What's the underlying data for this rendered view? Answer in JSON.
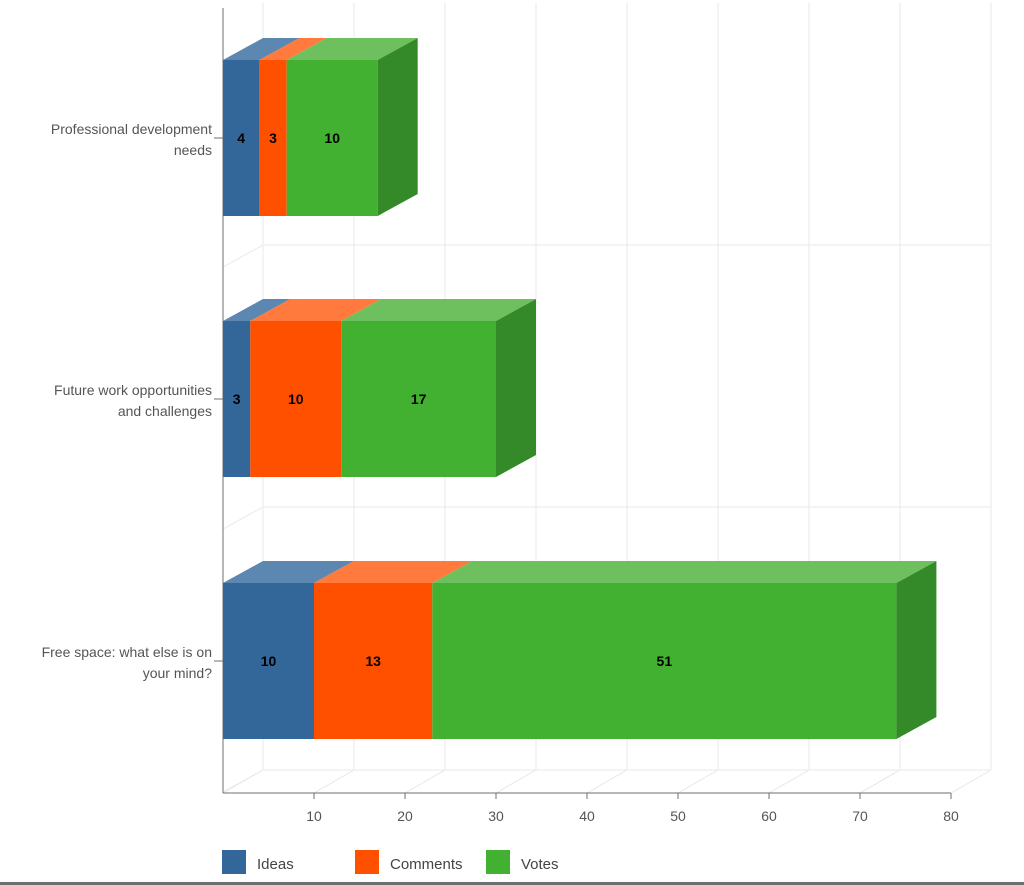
{
  "chart_data": {
    "type": "bar",
    "orientation": "horizontal",
    "stacked": true,
    "three_d": true,
    "title": "",
    "xlabel": "",
    "ylabel": "",
    "xlim": [
      0,
      80
    ],
    "ticks": [
      10,
      20,
      30,
      40,
      50,
      60,
      70,
      80
    ],
    "grid": true,
    "legend_position": "bottom-left",
    "categories": [
      [
        "Professional development",
        "needs"
      ],
      [
        "Future work opportunities",
        "and challenges"
      ],
      [
        "Free space: what else is on",
        "your mind?"
      ]
    ],
    "series": [
      {
        "name": "Ideas",
        "color": "#336699",
        "top_color": "#5c87b1",
        "side_color": "#27517a",
        "values": [
          4,
          3,
          10
        ]
      },
      {
        "name": "Comments",
        "color": "#ff5000",
        "top_color": "#ff7a3c",
        "side_color": "#c43c00",
        "values": [
          3,
          10,
          13
        ]
      },
      {
        "name": "Votes",
        "color": "#42b030",
        "top_color": "#6ec05e",
        "side_color": "#348a28",
        "values": [
          10,
          17,
          51
        ]
      }
    ]
  }
}
